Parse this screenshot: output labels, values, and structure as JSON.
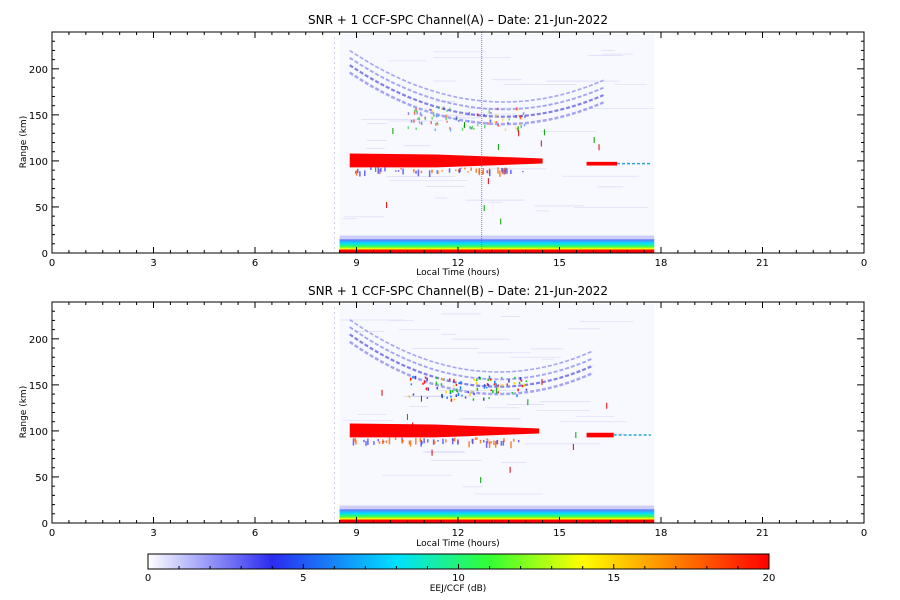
{
  "chart_data": {
    "type": "heatmap",
    "colorbar": {
      "label": "EEJ/CCF (dB)",
      "range": [
        0,
        20
      ],
      "ticks": [
        "0",
        "5",
        "10",
        "15",
        "20"
      ],
      "colors": [
        "#ffffff",
        "#2b2bf0",
        "#00e0ff",
        "#33ff33",
        "#ffff00",
        "#ff2a00",
        "#ff0000"
      ]
    },
    "panels": [
      {
        "title": "SNR + 1 CCF-SPC Channel(A) – Date: 21-Jun-2022",
        "xlabel": "Local Time (hours)",
        "ylabel": "Range (km)",
        "xlim": [
          0,
          24
        ],
        "ylim": [
          0,
          240
        ],
        "xticks": [
          "0",
          "3",
          "6",
          "9",
          "12",
          "15",
          "18",
          "21",
          "0"
        ],
        "yticks": [
          "0",
          "50",
          "100",
          "150",
          "200"
        ],
        "grid": false,
        "data_span_hours": [
          8.5,
          17.8
        ],
        "echo_layers": [
          {
            "name": "ground clutter",
            "t_start": 8.5,
            "t_end": 17.8,
            "range_km": [
              0,
              15
            ],
            "level_db": 20
          },
          {
            "name": "E-region (EEJ)",
            "t_start": 8.8,
            "t_end": 14.5,
            "range_km": [
              93,
              108
            ],
            "level_db": 20
          },
          {
            "name": "E-region late",
            "t_start": 15.8,
            "t_end": 16.7,
            "range_km": [
              95,
              99
            ],
            "level_db": 20
          },
          {
            "name": "150-km echoes",
            "t_start": 8.8,
            "t_end": 16.3,
            "range_km": [
              130,
              170
            ],
            "level_db": 4
          }
        ],
        "vertical_line_hour": 12.7
      },
      {
        "title": "SNR + 1 CCF-SPC Channel(B) – Date: 21-Jun-2022",
        "xlabel": "Local Time (hours)",
        "ylabel": "Range (km)",
        "xlim": [
          0,
          24
        ],
        "ylim": [
          0,
          240
        ],
        "xticks": [
          "0",
          "3",
          "6",
          "9",
          "12",
          "15",
          "18",
          "21",
          "0"
        ],
        "yticks": [
          "0",
          "50",
          "100",
          "150",
          "200"
        ],
        "grid": false,
        "data_span_hours": [
          8.5,
          17.8
        ],
        "echo_layers": [
          {
            "name": "ground clutter",
            "t_start": 8.5,
            "t_end": 17.8,
            "range_km": [
              0,
              15
            ],
            "level_db": 20
          },
          {
            "name": "E-region (EEJ)",
            "t_start": 8.8,
            "t_end": 14.4,
            "range_km": [
              93,
              108
            ],
            "level_db": 20
          },
          {
            "name": "E-region late",
            "t_start": 15.8,
            "t_end": 16.6,
            "range_km": [
              93,
              98
            ],
            "level_db": 20
          },
          {
            "name": "150-km echoes",
            "t_start": 8.8,
            "t_end": 16.0,
            "range_km": [
              130,
              172
            ],
            "level_db": 6
          }
        ]
      }
    ]
  }
}
